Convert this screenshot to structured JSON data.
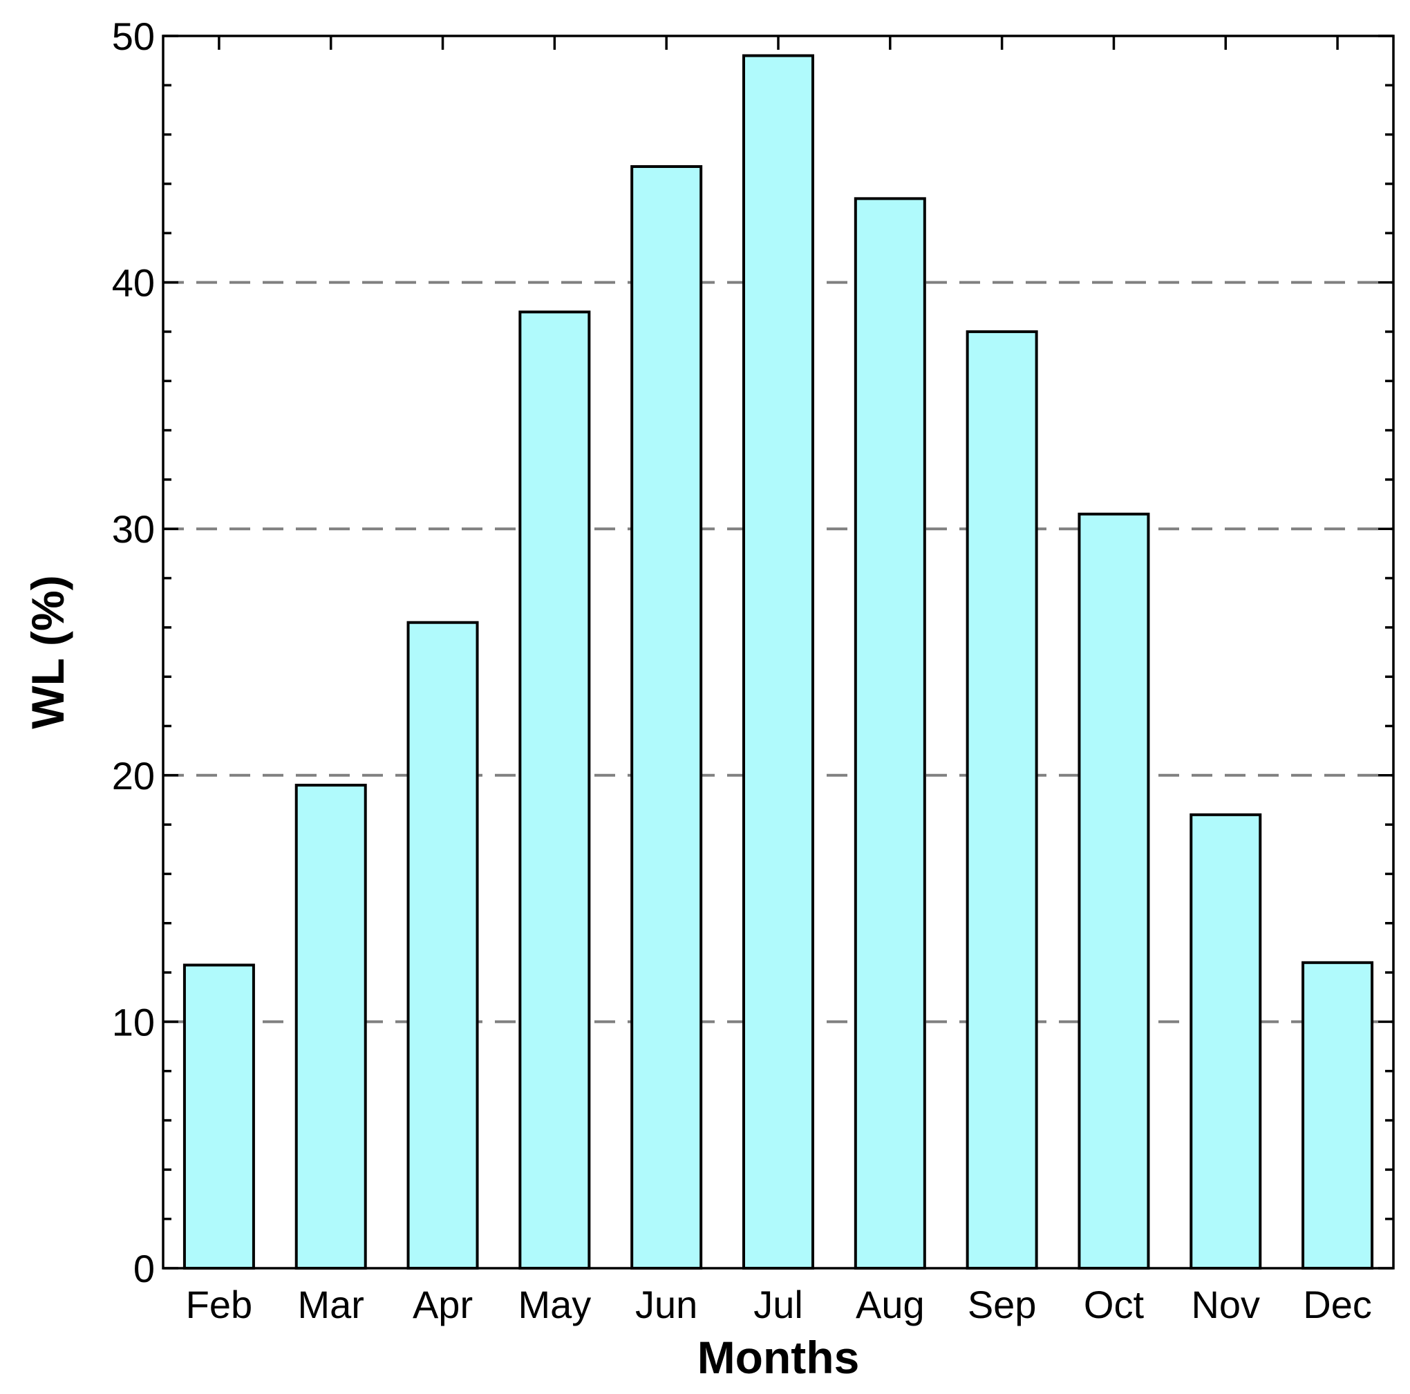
{
  "chart_data": {
    "type": "bar",
    "categories": [
      "Feb",
      "Mar",
      "Apr",
      "May",
      "Jun",
      "Jul",
      "Aug",
      "Sep",
      "Oct",
      "Nov",
      "Dec"
    ],
    "values": [
      12.3,
      19.6,
      26.2,
      38.8,
      44.7,
      49.2,
      43.4,
      38.0,
      30.6,
      18.4,
      12.4
    ],
    "xlabel": "Months",
    "ylabel": "WL (%)",
    "ylim": [
      0,
      50
    ],
    "yticks": [
      0,
      10,
      20,
      30,
      40,
      50
    ],
    "grid": "horizontal dashed at 10, 20, 30, 40",
    "colors": {
      "bar_fill": "#b0fafc",
      "bar_stroke": "#000000",
      "grid": "#808080"
    }
  }
}
